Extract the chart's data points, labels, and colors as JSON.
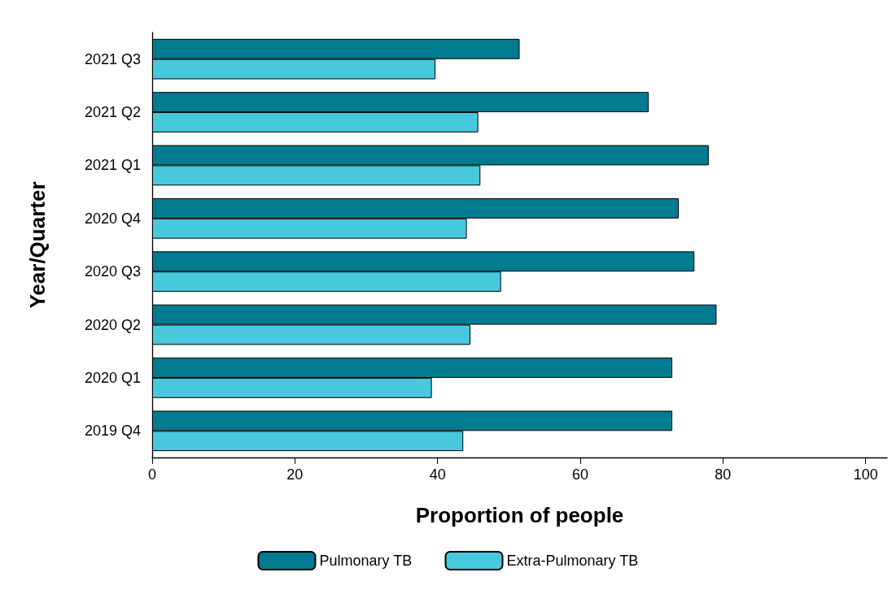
{
  "chart_data": {
    "type": "bar",
    "orientation": "horizontal",
    "xlabel": "Proportion of people",
    "ylabel": "Year/Quarter",
    "categories": [
      "2021 Q3",
      "2021 Q2",
      "2021 Q1",
      "2020 Q4",
      "2020 Q3",
      "2020 Q2",
      "2020 Q1",
      "2019 Q4"
    ],
    "series": [
      {
        "name": "Pulmonary TB",
        "color": "#007b8f",
        "values": [
          51.5,
          69.6,
          78.0,
          73.8,
          76.0,
          79.1,
          72.9,
          72.9
        ]
      },
      {
        "name": "Extra-Pulmonary TB",
        "color": "#48c8dc",
        "values": [
          39.7,
          45.7,
          46.0,
          44.1,
          48.9,
          44.6,
          39.2,
          43.6
        ]
      }
    ],
    "xlim": [
      0,
      103
    ],
    "xticks": [
      0,
      20,
      40,
      60,
      80,
      100
    ],
    "grid": false,
    "legend": "bottom"
  }
}
